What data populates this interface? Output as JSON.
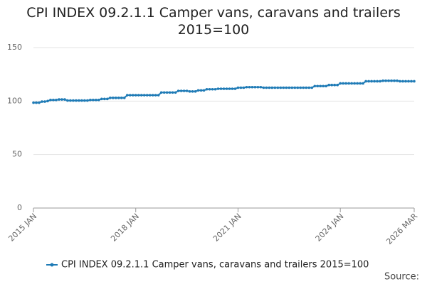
{
  "chart_data": {
    "type": "line",
    "title": "CPI INDEX 09.2.1.1 Camper vans, caravans and trailers 2015=100",
    "source": "Source:",
    "categories": [
      "2015 JAN",
      null,
      null,
      null,
      null,
      null,
      null,
      null,
      null,
      null,
      null,
      null,
      null,
      null,
      null,
      null,
      null,
      null,
      null,
      null,
      null,
      null,
      null,
      null,
      null,
      null,
      null,
      null,
      null,
      null,
      null,
      null,
      null,
      null,
      null,
      null,
      "2018 JAN",
      null,
      null,
      null,
      null,
      null,
      null,
      null,
      null,
      null,
      null,
      null,
      null,
      null,
      null,
      null,
      null,
      null,
      null,
      null,
      null,
      null,
      null,
      null,
      null,
      null,
      null,
      null,
      null,
      null,
      null,
      null,
      null,
      null,
      null,
      null,
      "2021 JAN",
      null,
      null,
      null,
      null,
      null,
      null,
      null,
      null,
      null,
      null,
      null,
      null,
      null,
      null,
      null,
      null,
      null,
      null,
      null,
      null,
      null,
      null,
      null,
      null,
      null,
      null,
      null,
      null,
      null,
      null,
      null,
      null,
      null,
      null,
      null,
      "2024 JAN",
      null,
      null,
      null,
      null,
      null,
      null,
      null,
      null,
      null,
      null,
      null,
      null,
      null,
      null,
      null,
      null,
      null,
      null,
      null,
      null,
      null,
      null,
      null,
      null,
      null,
      "2026 MAR"
    ],
    "series": [
      {
        "name": "CPI INDEX 09.2.1.1 Camper vans, caravans and trailers 2015=100",
        "color": "#1f7bb6",
        "values": [
          98.5,
          98.5,
          98.5,
          99.5,
          99.5,
          100,
          101,
          101,
          101,
          101.5,
          101.5,
          101.5,
          100.5,
          100.5,
          100.5,
          100.5,
          100.5,
          100.5,
          100.5,
          100.5,
          101,
          101,
          101,
          101,
          102,
          102,
          102,
          103,
          103,
          103,
          103,
          103,
          103,
          105.5,
          105.5,
          105.5,
          105.5,
          105.5,
          105.5,
          105.5,
          105.5,
          105.5,
          105.5,
          105.5,
          105.5,
          108,
          108,
          108,
          108,
          108,
          108,
          109.5,
          109.5,
          109.5,
          109.5,
          109,
          109,
          109,
          110,
          110,
          110,
          111,
          111,
          111,
          111,
          111.5,
          111.5,
          111.5,
          111.5,
          111.5,
          111.5,
          111.5,
          112.5,
          112.5,
          112.5,
          113,
          113,
          113,
          113,
          113,
          113,
          112.5,
          112.5,
          112.5,
          112.5,
          112.5,
          112.5,
          112.5,
          112.5,
          112.5,
          112.5,
          112.5,
          112.5,
          112.5,
          112.5,
          112.5,
          112.5,
          112.5,
          112.5,
          114,
          114,
          114,
          114,
          114,
          115,
          115,
          115,
          115,
          116.5,
          116.5,
          116.5,
          116.5,
          116.5,
          116.5,
          116.5,
          116.5,
          116.5,
          118.5,
          118.5,
          118.5,
          118.5,
          118.5,
          118.5,
          119,
          119,
          119,
          119,
          119,
          119,
          118.5,
          118.5,
          118.5,
          118.5,
          118.5,
          118.5
        ]
      }
    ],
    "ylim": [
      0,
      150
    ],
    "yticks": [
      0,
      50,
      100,
      150
    ],
    "grid": true
  }
}
